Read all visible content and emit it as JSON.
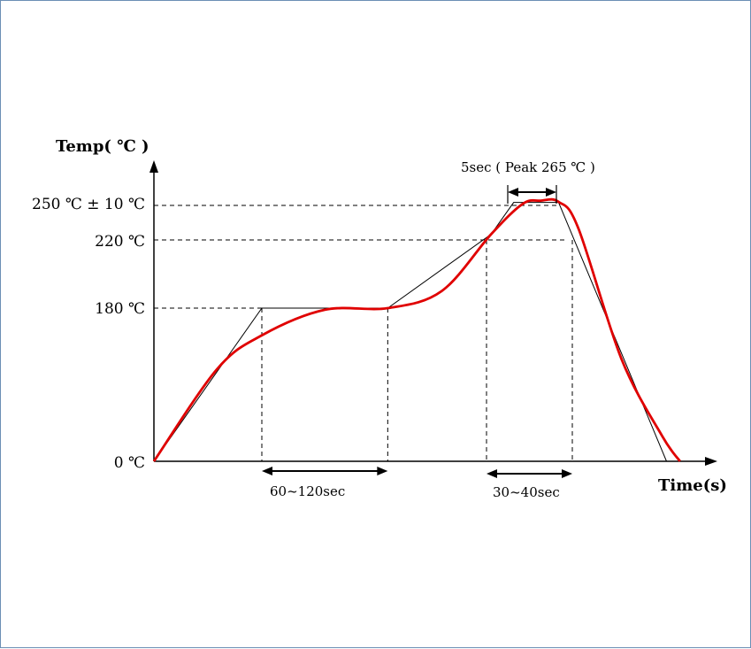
{
  "chart_data": {
    "type": "line",
    "title": "",
    "ylabel": "Temp( ℃ )",
    "xlabel": "Time(s)",
    "y_tick_labels": [
      "0 ℃",
      "180 ℃",
      "220 ℃",
      "250 ℃ ±  10 ℃"
    ],
    "y_tick_values": [
      0,
      180,
      220,
      250
    ],
    "annotations": {
      "preheat": "60~120sec",
      "above_liquidus": "30~40sec",
      "peak": "5sec ( Peak 265 ℃ )"
    },
    "series": [
      {
        "style": "thin-black",
        "points": [
          [
            0,
            0
          ],
          [
            120,
            180
          ],
          [
            260,
            180
          ],
          [
            375,
            225
          ],
          [
            400,
            260
          ],
          [
            450,
            260
          ],
          [
            570,
            0
          ]
        ]
      },
      {
        "style": "red",
        "color": "#e00000",
        "points": [
          [
            0,
            0
          ],
          [
            70,
            108
          ],
          [
            120,
            148
          ],
          [
            190,
            178
          ],
          [
            260,
            180
          ],
          [
            320,
            190
          ],
          [
            375,
            225
          ],
          [
            410,
            255
          ],
          [
            430,
            266
          ],
          [
            450,
            262
          ],
          [
            472,
            230
          ],
          [
            520,
            120
          ],
          [
            565,
            30
          ],
          [
            585,
            0
          ]
        ]
      }
    ]
  }
}
